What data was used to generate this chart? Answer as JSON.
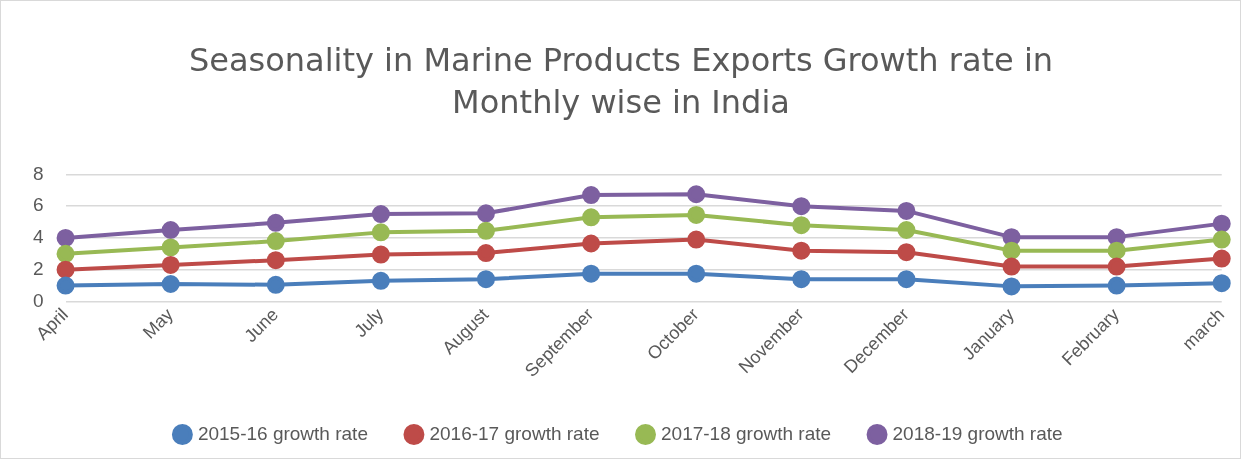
{
  "chart_data": {
    "type": "line",
    "title": "Seasonality in Marine Products Exports Growth rate in Monthly wise in India",
    "categories": [
      "April",
      "May",
      "June",
      "July",
      "August",
      "September",
      "October",
      "November",
      "December",
      "January",
      "February",
      "march"
    ],
    "series": [
      {
        "name": "2015-16 growth rate",
        "color": "#4a7ebb",
        "values": [
          1.0,
          1.1,
          1.05,
          1.3,
          1.4,
          1.75,
          1.75,
          1.4,
          1.4,
          0.95,
          1.0,
          1.15
        ]
      },
      {
        "name": "2016-17 growth rate",
        "color": "#be4b48",
        "values": [
          2.0,
          2.3,
          2.6,
          2.95,
          3.05,
          3.65,
          3.9,
          3.2,
          3.1,
          2.2,
          2.2,
          2.7
        ]
      },
      {
        "name": "2017-18 growth rate",
        "color": "#98b954",
        "values": [
          3.0,
          3.4,
          3.8,
          4.35,
          4.45,
          5.3,
          5.45,
          4.8,
          4.5,
          3.2,
          3.2,
          3.9
        ]
      },
      {
        "name": "2018-19 growth rate",
        "color": "#7d60a0",
        "values": [
          4.0,
          4.5,
          4.95,
          5.5,
          5.55,
          6.7,
          6.75,
          6.0,
          5.7,
          4.05,
          4.05,
          4.9
        ]
      }
    ],
    "ylim": [
      0,
      8
    ],
    "yticks": [
      0,
      2,
      4,
      6,
      8
    ],
    "grid": "y",
    "legend": "bottom",
    "marker": "circle",
    "line_style": "solid"
  }
}
